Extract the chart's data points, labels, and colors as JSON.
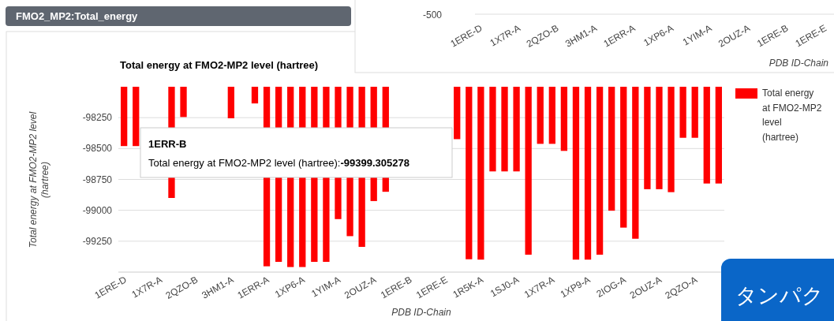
{
  "chart_data": [
    {
      "type": "bar",
      "title": "Total energy at FMO2-MP2 level (hartree)",
      "xlabel": "PDB ID-Chain",
      "ylabel": "Total energy at FMO2-MP2 level (hartree)",
      "categories": [
        "1ERE-D",
        null,
        null,
        "1X7R-A",
        null,
        null,
        "2QZO-B",
        null,
        null,
        "3HM1-A",
        null,
        null,
        "1ERR-A",
        null,
        null,
        "1XP6-A",
        null,
        null,
        "1YIM-A",
        null,
        null,
        "2OUZ-A",
        null,
        null,
        "1ERE-B",
        null,
        null,
        "1ERE-E",
        null,
        null,
        "1R5K-A",
        null,
        null,
        "1SJ0-A",
        null,
        null,
        "1X7R-A",
        null,
        null,
        "1XP9-A",
        null,
        null,
        "2IOG-A",
        null,
        null,
        "2OUZ-A",
        null,
        null,
        "2QZO-A",
        null,
        null
      ],
      "series": [
        {
          "name": "Total energy at FMO2-MP2 level (hartree)",
          "color": "#ff0000",
          "values": [
            -98480,
            -98480,
            null,
            null,
            -98900,
            -98245,
            null,
            null,
            null,
            -98255,
            null,
            -98135,
            -99453,
            -99417,
            -99459,
            -99459,
            -99417,
            -99417,
            -99071,
            -99209,
            -99296,
            -98925,
            -98850,
            null,
            null,
            null,
            null,
            null,
            -98424,
            -99396,
            -99399,
            -98685,
            -98685,
            -98685,
            -99359,
            -98462,
            -98462,
            -98519,
            -99399,
            -99399,
            -99359,
            -99003,
            -99140,
            -99230,
            -98829,
            -98829,
            -98853,
            -98413,
            -98413,
            -98783,
            -98783
          ]
        }
      ],
      "ylim": [
        -99500,
        -98000
      ],
      "yticks": [
        -98250,
        -98500,
        -98750,
        -99000,
        -99250
      ],
      "grid": "y",
      "legend": "top right",
      "annotations": [
        "FMO2_MP2:Total_energy",
        "1ERR-B",
        "Total energy at FMO2-MP2 level (hartree):-99399.305278"
      ]
    },
    {
      "type": "other",
      "categories": [
        "1ERE-D",
        "1X7R-A",
        "2QZO-B",
        "3HM1-A",
        "1ERR-A",
        "1XP6-A",
        "1YIM-A",
        "2OUZ-A",
        "1ERE-B",
        "1ERE-E"
      ],
      "xlabel": "PDB ID-Chain",
      "annotations": [
        "-500",
        "タンパク"
      ]
    }
  ]
}
